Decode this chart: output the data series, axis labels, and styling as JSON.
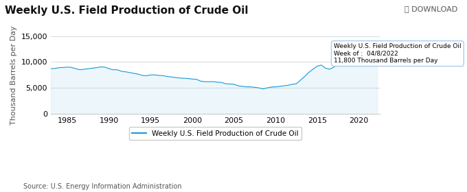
{
  "title": "Weekly U.S. Field Production of Crude Oil",
  "ylabel": "Thousand Barrels per Day",
  "source": "Source: U.S. Energy Information Administration",
  "download_text": "⤓ DOWNLOAD",
  "legend_label": "Weekly U.S. Field Production of Crude Oil",
  "tooltip_title": "Weekly U.S. Field Production of Crude Oil",
  "tooltip_week": "Week of :  04/8/2022",
  "tooltip_value": "11,800 Thousand Barrels per Day",
  "line_color": "#1a9cd8",
  "tooltip_highlight_color": "#b3e0f5",
  "ylim": [
    0,
    15000
  ],
  "yticks": [
    0,
    5000,
    10000,
    15000
  ],
  "ytick_labels": [
    "0",
    "5,000",
    "10,000",
    "15,000"
  ],
  "bg_color": "#ffffff",
  "grid_color": "#cccccc",
  "title_fontsize": 11,
  "axis_label_fontsize": 8,
  "tick_fontsize": 8,
  "source_fontsize": 7,
  "series": [
    1983,
    1983.5,
    1984,
    1984.5,
    1985,
    1985.5,
    1986,
    1986.5,
    1987,
    1987.5,
    1988,
    1988.5,
    1989,
    1989.5,
    1990,
    1990.5,
    1991,
    1991.5,
    1992,
    1992.5,
    1993,
    1993.5,
    1994,
    1994.5,
    1995,
    1995.5,
    1996,
    1996.5,
    1997,
    1997.5,
    1998,
    1998.5,
    1999,
    1999.5,
    2000,
    2000.5,
    2001,
    2001.5,
    2002,
    2002.5,
    2003,
    2003.5,
    2004,
    2004.5,
    2005,
    2005.5,
    2006,
    2006.5,
    2007,
    2007.5,
    2008,
    2008.5,
    2009,
    2009.5,
    2010,
    2010.5,
    2011,
    2011.5,
    2012,
    2012.5,
    2013,
    2013.5,
    2014,
    2014.5,
    2015,
    2015.5,
    2016,
    2016.5,
    2017,
    2017.5,
    2018,
    2018.5,
    2019,
    2019.5,
    2020,
    2020.5,
    2021,
    2021.5,
    2022,
    2022.2
  ],
  "values": [
    8700,
    8750,
    8900,
    8950,
    9000,
    8950,
    8700,
    8500,
    8600,
    8700,
    8800,
    8900,
    9050,
    9000,
    8700,
    8500,
    8500,
    8200,
    8100,
    7950,
    7800,
    7650,
    7400,
    7350,
    7500,
    7500,
    7400,
    7350,
    7200,
    7100,
    7000,
    6900,
    6850,
    6800,
    6700,
    6650,
    6300,
    6200,
    6200,
    6200,
    6100,
    6050,
    5800,
    5750,
    5700,
    5400,
    5300,
    5200,
    5200,
    5100,
    5000,
    4800,
    5000,
    5150,
    5200,
    5300,
    5400,
    5500,
    5700,
    5800,
    6500,
    7200,
    8000,
    8600,
    9200,
    9400,
    8800,
    8600,
    9000,
    9500,
    10000,
    10500,
    11500,
    12000,
    13000,
    11000,
    10000,
    10300,
    11200,
    11800
  ],
  "tooltip_x": 2018.5,
  "tooltip_y": 11800,
  "xmin": 1983,
  "xmax": 2022.5,
  "xticks": [
    1985,
    1990,
    1995,
    2000,
    2005,
    2010,
    2015,
    2020
  ]
}
